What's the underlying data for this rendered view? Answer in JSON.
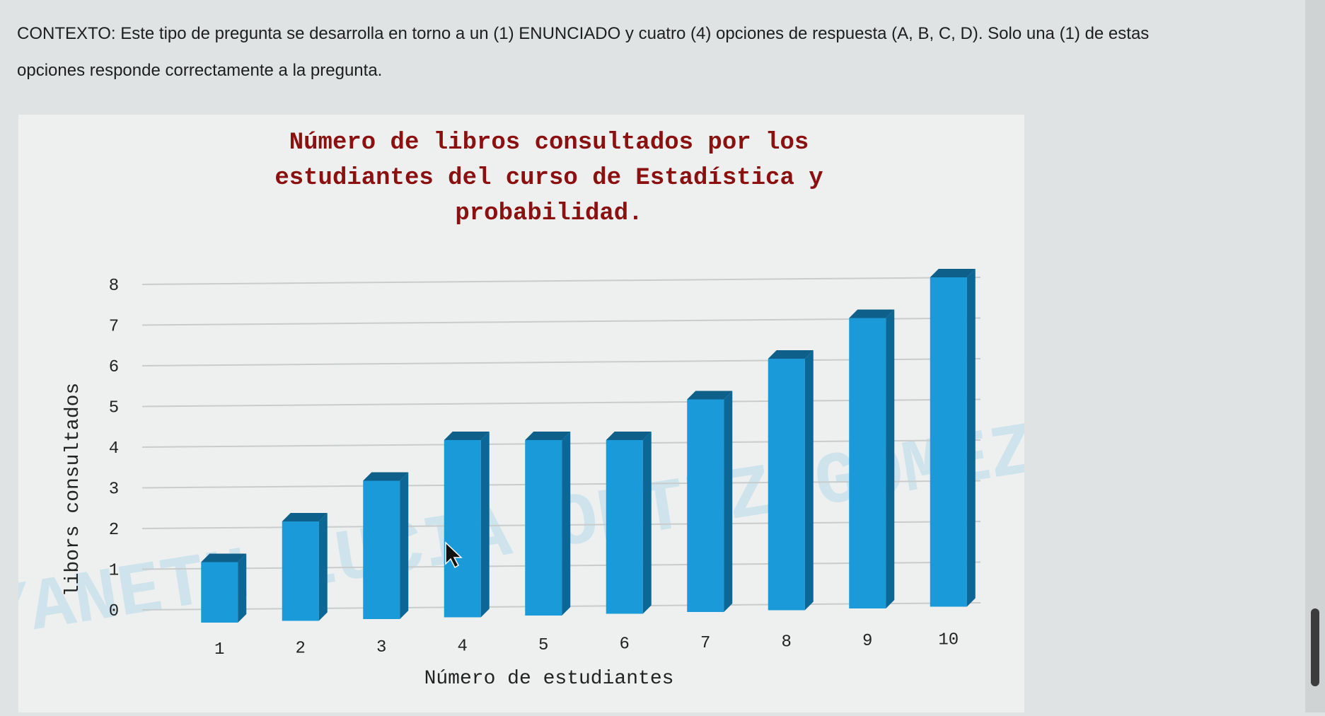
{
  "context": {
    "line1": "CONTEXTO: Este tipo de pregunta se desarrolla en torno a un (1) ENUNCIADO y cuatro (4) opciones de respuesta (A, B, C, D). Solo una (1) de estas",
    "line2": "opciones responde correctamente a la pregunta."
  },
  "chart_data": {
    "type": "bar",
    "title": "Número de libros consultados  por los estudiantes del curso de Estadística y probabilidad.",
    "title_lines": [
      "Número de libros consultados  por los",
      "estudiantes del curso de Estadística y",
      "probabilidad."
    ],
    "xlabel": "Número de estudiantes",
    "ylabel": "libors consultados",
    "categories": [
      "1",
      "2",
      "3",
      "4",
      "5",
      "6",
      "7",
      "8",
      "9",
      "10"
    ],
    "values": [
      1,
      2,
      3,
      4,
      4,
      4,
      5,
      6,
      7,
      8
    ],
    "ylim": [
      0,
      8
    ],
    "yticks": [
      "0",
      "1",
      "2",
      "3",
      "4",
      "5",
      "6",
      "7",
      "8"
    ],
    "grid": true,
    "legend": "none",
    "colors": {
      "bar_front": "#1a9ad8",
      "bar_side": "#0c6696",
      "bar_top": "#0e5f89",
      "grid": "#c9cccc"
    }
  },
  "watermark": "YANETH LUCIA ORTIZ GOMEZ"
}
